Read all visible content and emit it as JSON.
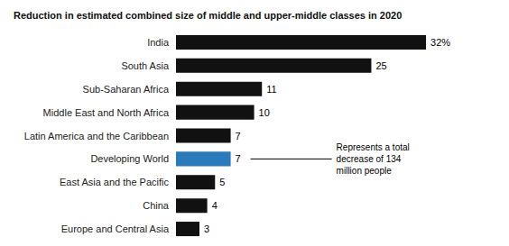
{
  "chart_data": {
    "type": "bar",
    "orientation": "horizontal",
    "title": "Reduction in estimated combined size of middle and upper-middle classes in 2020",
    "categories": [
      "India",
      "South Asia",
      "Sub-Saharan Africa",
      "Middle East and North Africa",
      "Latin America and the Caribbean",
      "Developing World",
      "East Asia and the Pacific",
      "China",
      "Europe and Central Asia"
    ],
    "values": [
      32,
      25,
      11,
      10,
      7,
      7,
      5,
      4,
      3
    ],
    "value_labels": [
      "32%",
      "25",
      "11",
      "10",
      "7",
      "7",
      "5",
      "4",
      "3"
    ],
    "colors": [
      "#111111",
      "#111111",
      "#111111",
      "#111111",
      "#111111",
      "#2b7bba",
      "#111111",
      "#111111",
      "#111111"
    ],
    "xlim": [
      0,
      38
    ],
    "data_labels": true,
    "tick_labels": "y",
    "grid": false,
    "annotations": [
      {
        "text": "Represents a total\ndecrease of 134\nmillion people",
        "category": "Developing World"
      }
    ]
  }
}
